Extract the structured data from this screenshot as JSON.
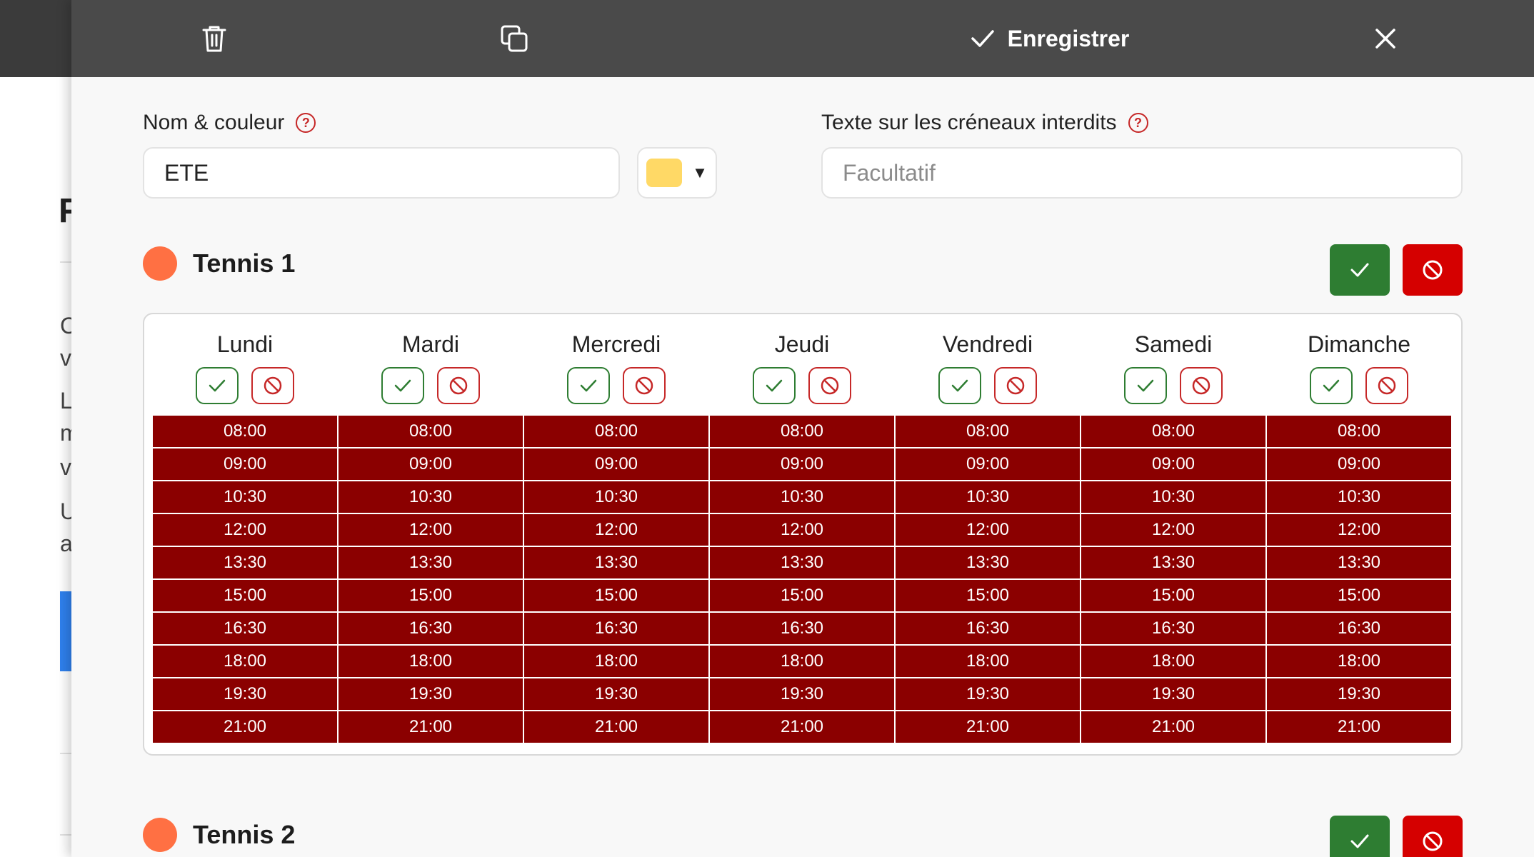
{
  "toolbar": {
    "save_label": "Enregistrer"
  },
  "form": {
    "name_label": "Nom & couleur",
    "name_value": "ETE",
    "color_value": "#ffd966",
    "forbidden_text_label": "Texte sur les créneaux interdits",
    "forbidden_text_placeholder": "Facultatif",
    "help_glyph": "?"
  },
  "courts": [
    {
      "name": "Tennis 1",
      "color": "#ff7043",
      "days": [
        {
          "name": "Lundi"
        },
        {
          "name": "Mardi"
        },
        {
          "name": "Mercredi"
        },
        {
          "name": "Jeudi"
        },
        {
          "name": "Vendredi"
        },
        {
          "name": "Samedi"
        },
        {
          "name": "Dimanche"
        }
      ],
      "slots": [
        "08:00",
        "09:00",
        "10:30",
        "12:00",
        "13:30",
        "15:00",
        "16:30",
        "18:00",
        "19:30",
        "21:00"
      ],
      "slot_state": "forbidden",
      "slot_color": "#8b0000"
    },
    {
      "name": "Tennis 2",
      "color": "#ff7043"
    }
  ],
  "colors": {
    "accept": "#2e7d32",
    "forbid": "#d50000"
  },
  "icons": {
    "delete": "trash-icon",
    "copy": "copy-icon",
    "save": "check-icon",
    "close": "close-icon",
    "forbid": "forbid-icon"
  }
}
